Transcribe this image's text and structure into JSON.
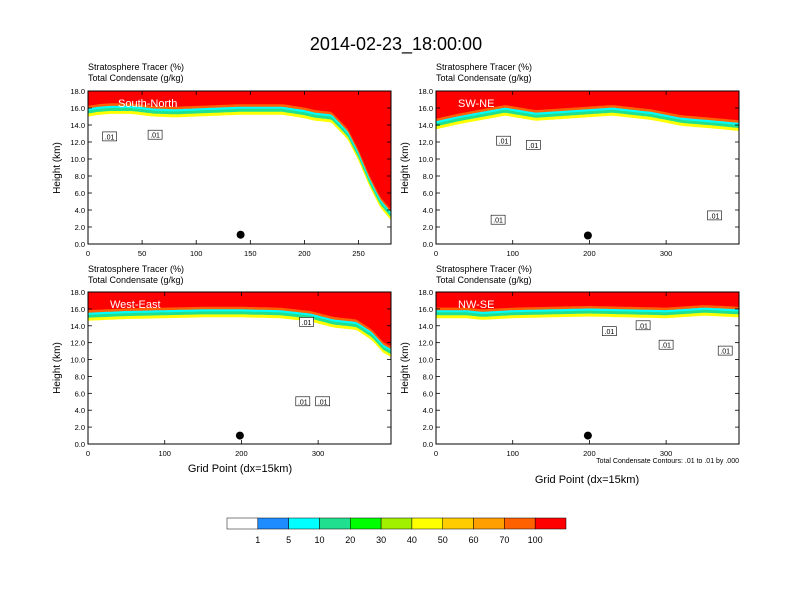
{
  "page_title": "2014-02-23_18:00:00",
  "panel_label_line1": "Stratosphere Tracer   (%)",
  "panel_label_line2": "Total Condensate   (g/kg)",
  "ylabel": "Height (km)",
  "xlabel": "Grid Point (dx=15km)",
  "contour_note": "Total Condensate Contours: .01 to .01 by .000",
  "colorbar": {
    "labels": [
      "1",
      "5",
      "10",
      "20",
      "30",
      "40",
      "50",
      "60",
      "70",
      "100"
    ],
    "colors": [
      "#ffffff",
      "#1e8cff",
      "#00ffff",
      "#20e090",
      "#00ff00",
      "#a0f000",
      "#ffff00",
      "#ffcc00",
      "#ffa000",
      "#ff6000",
      "#ff0000"
    ]
  },
  "chart_data": [
    {
      "type": "heatmap",
      "title": "South-North",
      "xlim": [
        0,
        280
      ],
      "ylim": [
        0,
        18
      ],
      "xticks": [
        0,
        50,
        100,
        150,
        200,
        250
      ],
      "yticks": [
        "0.0",
        "2.0",
        "4.0",
        "6.0",
        "8.0",
        "10.0",
        "12.0",
        "14.0",
        "16.0",
        "18.0"
      ],
      "tropopause_km": [
        [
          0,
          15.7
        ],
        [
          10,
          15.9
        ],
        [
          20,
          16.0
        ],
        [
          40,
          16.0
        ],
        [
          60,
          15.7
        ],
        [
          80,
          15.6
        ],
        [
          100,
          15.7
        ],
        [
          140,
          15.9
        ],
        [
          180,
          15.9
        ],
        [
          200,
          15.5
        ],
        [
          210,
          15.2
        ],
        [
          225,
          15.0
        ],
        [
          240,
          13.0
        ],
        [
          250,
          10.5
        ],
        [
          260,
          7.5
        ],
        [
          270,
          5.0
        ],
        [
          280,
          3.5
        ]
      ],
      "contour_labels": [
        {
          "text": ".01",
          "x": 20,
          "y": 12.6
        },
        {
          "text": ".01",
          "x": 62,
          "y": 12.8
        }
      ],
      "marker": {
        "x": 141,
        "y": 1.1
      }
    },
    {
      "type": "heatmap",
      "title": "SW-NE",
      "xlim": [
        0,
        395
      ],
      "ylim": [
        0,
        18
      ],
      "xticks": [
        0,
        100,
        200,
        300
      ],
      "yticks": [
        "0.0",
        "2.0",
        "4.0",
        "6.0",
        "8.0",
        "10.0",
        "12.0",
        "14.0",
        "16.0",
        "18.0"
      ],
      "tropopause_km": [
        [
          0,
          14.2
        ],
        [
          30,
          14.8
        ],
        [
          60,
          15.3
        ],
        [
          90,
          15.8
        ],
        [
          130,
          15.2
        ],
        [
          180,
          15.5
        ],
        [
          230,
          15.8
        ],
        [
          280,
          15.3
        ],
        [
          320,
          14.6
        ],
        [
          360,
          14.3
        ],
        [
          395,
          14.0
        ]
      ],
      "contour_labels": [
        {
          "text": ".01",
          "x": 88,
          "y": 12.1
        },
        {
          "text": ".01",
          "x": 127,
          "y": 11.6
        },
        {
          "text": ".01",
          "x": 81,
          "y": 2.8
        },
        {
          "text": ".01",
          "x": 363,
          "y": 3.3
        }
      ],
      "marker": {
        "x": 198,
        "y": 1.0
      }
    },
    {
      "type": "heatmap",
      "title": "West-East",
      "xlim": [
        0,
        395
      ],
      "ylim": [
        0,
        18
      ],
      "xticks": [
        0,
        100,
        200,
        300
      ],
      "yticks": [
        "0.0",
        "2.0",
        "4.0",
        "6.0",
        "8.0",
        "10.0",
        "12.0",
        "14.0",
        "16.0",
        "18.0"
      ],
      "tropopause_km": [
        [
          0,
          15.3
        ],
        [
          50,
          15.5
        ],
        [
          100,
          15.6
        ],
        [
          150,
          15.7
        ],
        [
          200,
          15.7
        ],
        [
          250,
          15.6
        ],
        [
          290,
          15.2
        ],
        [
          320,
          14.5
        ],
        [
          350,
          14.2
        ],
        [
          370,
          13.0
        ],
        [
          385,
          11.5
        ],
        [
          395,
          11.0
        ]
      ],
      "contour_labels": [
        {
          "text": ".01",
          "x": 285,
          "y": 14.4
        },
        {
          "text": ".01",
          "x": 280,
          "y": 5.0
        },
        {
          "text": ".01",
          "x": 306,
          "y": 5.0
        }
      ],
      "marker": {
        "x": 198,
        "y": 1.0
      }
    },
    {
      "type": "heatmap",
      "title": "NW-SE",
      "xlim": [
        0,
        395
      ],
      "ylim": [
        0,
        18
      ],
      "xticks": [
        0,
        100,
        200,
        300
      ],
      "yticks": [
        "0.0",
        "2.0",
        "4.0",
        "6.0",
        "8.0",
        "10.0",
        "12.0",
        "14.0",
        "16.0",
        "18.0"
      ],
      "tropopause_km": [
        [
          0,
          15.6
        ],
        [
          40,
          15.6
        ],
        [
          60,
          15.4
        ],
        [
          100,
          15.6
        ],
        [
          150,
          15.7
        ],
        [
          200,
          15.8
        ],
        [
          250,
          15.7
        ],
        [
          300,
          15.6
        ],
        [
          350,
          15.9
        ],
        [
          395,
          15.7
        ]
      ],
      "contour_labels": [
        {
          "text": ".01",
          "x": 226,
          "y": 13.3
        },
        {
          "text": ".01",
          "x": 270,
          "y": 14.0
        },
        {
          "text": ".01",
          "x": 300,
          "y": 11.7
        },
        {
          "text": ".01",
          "x": 377,
          "y": 11.0
        }
      ],
      "marker": {
        "x": 198,
        "y": 1.0
      }
    }
  ]
}
